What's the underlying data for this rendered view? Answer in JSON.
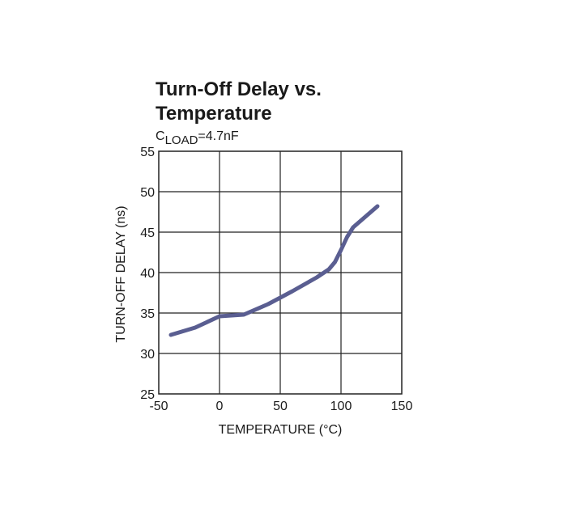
{
  "chart_data": {
    "type": "line",
    "title_line1": "Turn-Off Delay vs.",
    "title_line2": "Temperature",
    "condition": {
      "prefix": "C",
      "subscript": "LOAD",
      "suffix": "=4.7nF"
    },
    "xlabel": "TEMPERATURE (°C)",
    "ylabel": "TURN-OFF DELAY (ns)",
    "xlim": [
      -50,
      150
    ],
    "ylim": [
      25,
      55
    ],
    "xticks": [
      -50,
      0,
      50,
      100,
      150
    ],
    "yticks": [
      25,
      30,
      35,
      40,
      45,
      50,
      55
    ],
    "grid": true,
    "line_color": "#5a5e91",
    "series": [
      {
        "x": [
          -40,
          -20,
          0,
          10,
          20,
          40,
          60,
          80,
          90,
          95,
          100,
          105,
          110,
          120,
          130
        ],
        "y": [
          32.3,
          33.2,
          34.6,
          34.7,
          34.8,
          36.1,
          37.7,
          39.4,
          40.4,
          41.3,
          42.8,
          44.4,
          45.6,
          46.9,
          48.2
        ]
      }
    ]
  }
}
